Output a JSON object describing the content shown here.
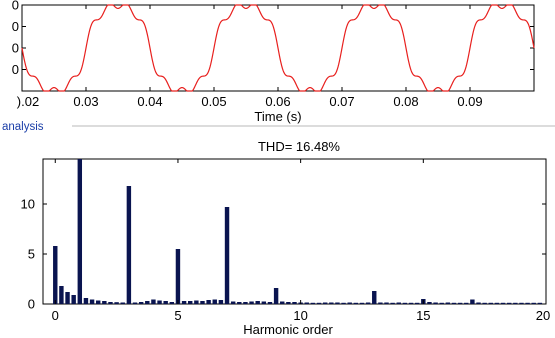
{
  "window": {
    "panel_label": "analysis"
  },
  "colors": {
    "waveform": "#e8201e",
    "bars": "#0a1450",
    "panel_text": "#1a3ea8",
    "panel_line": "#b9b9b9"
  },
  "chart_data": [
    {
      "type": "line",
      "name": "time-signal",
      "xlabel": "Time (s)",
      "ylabel": "",
      "xlim": [
        0.02,
        0.1
      ],
      "ylim": [
        -1,
        1
      ],
      "x_ticks": [
        0.02,
        0.03,
        0.04,
        0.05,
        0.06,
        0.07,
        0.08,
        0.09
      ],
      "x_tick_labels": [
        ").02",
        "0.03",
        "0.04",
        "0.05",
        "0.06",
        "0.07",
        "0.08",
        "0.09"
      ],
      "y_ticks": [
        -0.5,
        0,
        0.5,
        1
      ],
      "y_tick_labels": [
        "0",
        "0",
        "0",
        "0"
      ],
      "fundamental_hz": 50,
      "harmonics": [
        {
          "order": 1,
          "amplitude": 1.0
        },
        {
          "order": 3,
          "amplitude": 0.118
        },
        {
          "order": 5,
          "amplitude": 0.055
        },
        {
          "order": 7,
          "amplitude": 0.098
        }
      ],
      "grid": false
    },
    {
      "type": "bar",
      "name": "harmonic-spectrum",
      "title": "THD= 16.48%",
      "xlabel": "Harmonic order",
      "ylabel": "",
      "xlim": [
        -0.5,
        20
      ],
      "ylim": [
        0,
        14.5
      ],
      "x_ticks": [
        0,
        5,
        10,
        15,
        20
      ],
      "y_ticks": [
        0,
        5,
        10
      ],
      "x": [
        0,
        0.25,
        0.5,
        0.75,
        1,
        1.25,
        1.5,
        1.75,
        2,
        2.25,
        2.5,
        2.75,
        3,
        3.25,
        3.5,
        3.75,
        4,
        4.25,
        4.5,
        4.75,
        5,
        5.25,
        5.5,
        5.75,
        6,
        6.25,
        6.5,
        6.75,
        7,
        7.25,
        7.5,
        7.75,
        8,
        8.25,
        8.5,
        8.75,
        9,
        9.25,
        9.5,
        9.75,
        10,
        10.25,
        10.5,
        10.75,
        11,
        11.25,
        11.5,
        11.75,
        12,
        12.25,
        12.5,
        12.75,
        13,
        13.25,
        13.5,
        13.75,
        14,
        14.25,
        14.5,
        14.75,
        15,
        15.25,
        15.5,
        15.75,
        16,
        16.25,
        16.5,
        16.75,
        17,
        17.25,
        17.5,
        17.75,
        18,
        18.25,
        18.5,
        18.75,
        19,
        19.25,
        19.5,
        19.75
      ],
      "values": [
        5.8,
        1.8,
        1.2,
        0.9,
        14.5,
        0.6,
        0.45,
        0.35,
        0.3,
        0.2,
        0.18,
        0.15,
        11.8,
        0.15,
        0.2,
        0.3,
        0.45,
        0.35,
        0.3,
        0.2,
        5.5,
        0.3,
        0.3,
        0.35,
        0.3,
        0.4,
        0.45,
        0.4,
        9.7,
        0.25,
        0.2,
        0.2,
        0.25,
        0.3,
        0.25,
        0.2,
        1.6,
        0.25,
        0.2,
        0.2,
        0.15,
        0.15,
        0.12,
        0.12,
        0.15,
        0.15,
        0.15,
        0.12,
        0.15,
        0.12,
        0.12,
        0.15,
        1.3,
        0.15,
        0.15,
        0.12,
        0.15,
        0.12,
        0.12,
        0.12,
        0.5,
        0.2,
        0.15,
        0.12,
        0.15,
        0.12,
        0.12,
        0.12,
        0.45,
        0.15,
        0.12,
        0.12,
        0.12,
        0.12,
        0.12,
        0.12,
        0.12,
        0.12,
        0.12,
        0.12
      ],
      "grid": false
    }
  ]
}
